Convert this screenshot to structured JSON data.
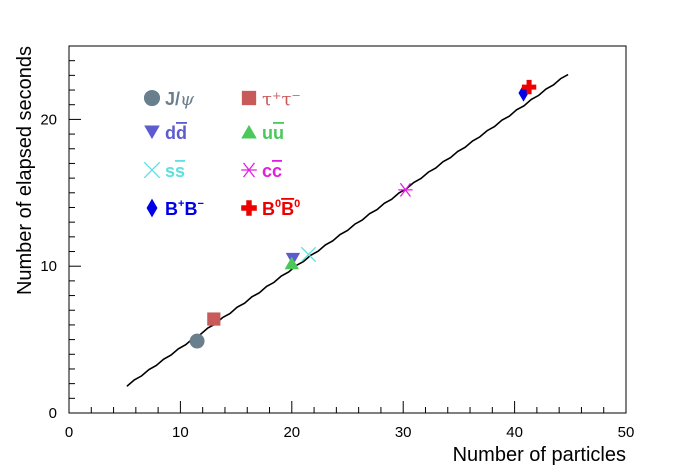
{
  "chart_data": {
    "type": "scatter",
    "xlabel": "Number of particles",
    "ylabel": "Number of elapsed seconds",
    "xlim": [
      0,
      50
    ],
    "ylim": [
      0,
      25
    ],
    "x_ticks": [
      "0",
      "10",
      "20",
      "30",
      "40",
      "50"
    ],
    "y_ticks": [
      "0",
      "10",
      "20"
    ],
    "grid": false,
    "legend_position": "top-left inside plot",
    "fit_line": {
      "x_range": [
        5.2,
        44.8
      ],
      "slope": 0.5362,
      "intercept": -0.93,
      "color": "#000000"
    },
    "series": [
      {
        "name": "J/ψ",
        "main": "J/",
        "greek": "ψ",
        "marker": "circle",
        "color": "#6a7f8e",
        "x": 11.5,
        "y": 4.9
      },
      {
        "name": "τ⁺τ⁻",
        "main": "τ⁺τ⁻",
        "marker": "square",
        "color": "#c85a5a",
        "x": 13.0,
        "y": 6.4
      },
      {
        "name": "dd̄",
        "main": "d",
        "bar": "d",
        "marker": "triangle-down",
        "color": "#5c5ccf",
        "x": 20.1,
        "y": 10.5
      },
      {
        "name": "uū",
        "main": "u",
        "bar": "u",
        "marker": "triangle-up",
        "color": "#4cc85a",
        "x": 20.0,
        "y": 10.2
      },
      {
        "name": "ss̄",
        "main": "s",
        "bar": "s",
        "marker": "cross",
        "color": "#5ee0e0",
        "x": 21.5,
        "y": 10.8
      },
      {
        "name": "cc̄",
        "main": "c",
        "bar": "c",
        "marker": "asterisk",
        "color": "#e020e0",
        "x": 30.2,
        "y": 15.2
      },
      {
        "name": "B⁺B⁻",
        "main": "B",
        "sup1": "+",
        "second": "B",
        "sup2": "−",
        "marker": "diamond",
        "color": "#0000e8",
        "x": 40.8,
        "y": 21.8
      },
      {
        "name": "B⁰B̄⁰",
        "main": "B",
        "sup1": "0",
        "second": "B",
        "sup2": "0",
        "bar_second": true,
        "marker": "plus",
        "color": "#ee0000",
        "x": 41.3,
        "y": 22.2
      }
    ]
  }
}
